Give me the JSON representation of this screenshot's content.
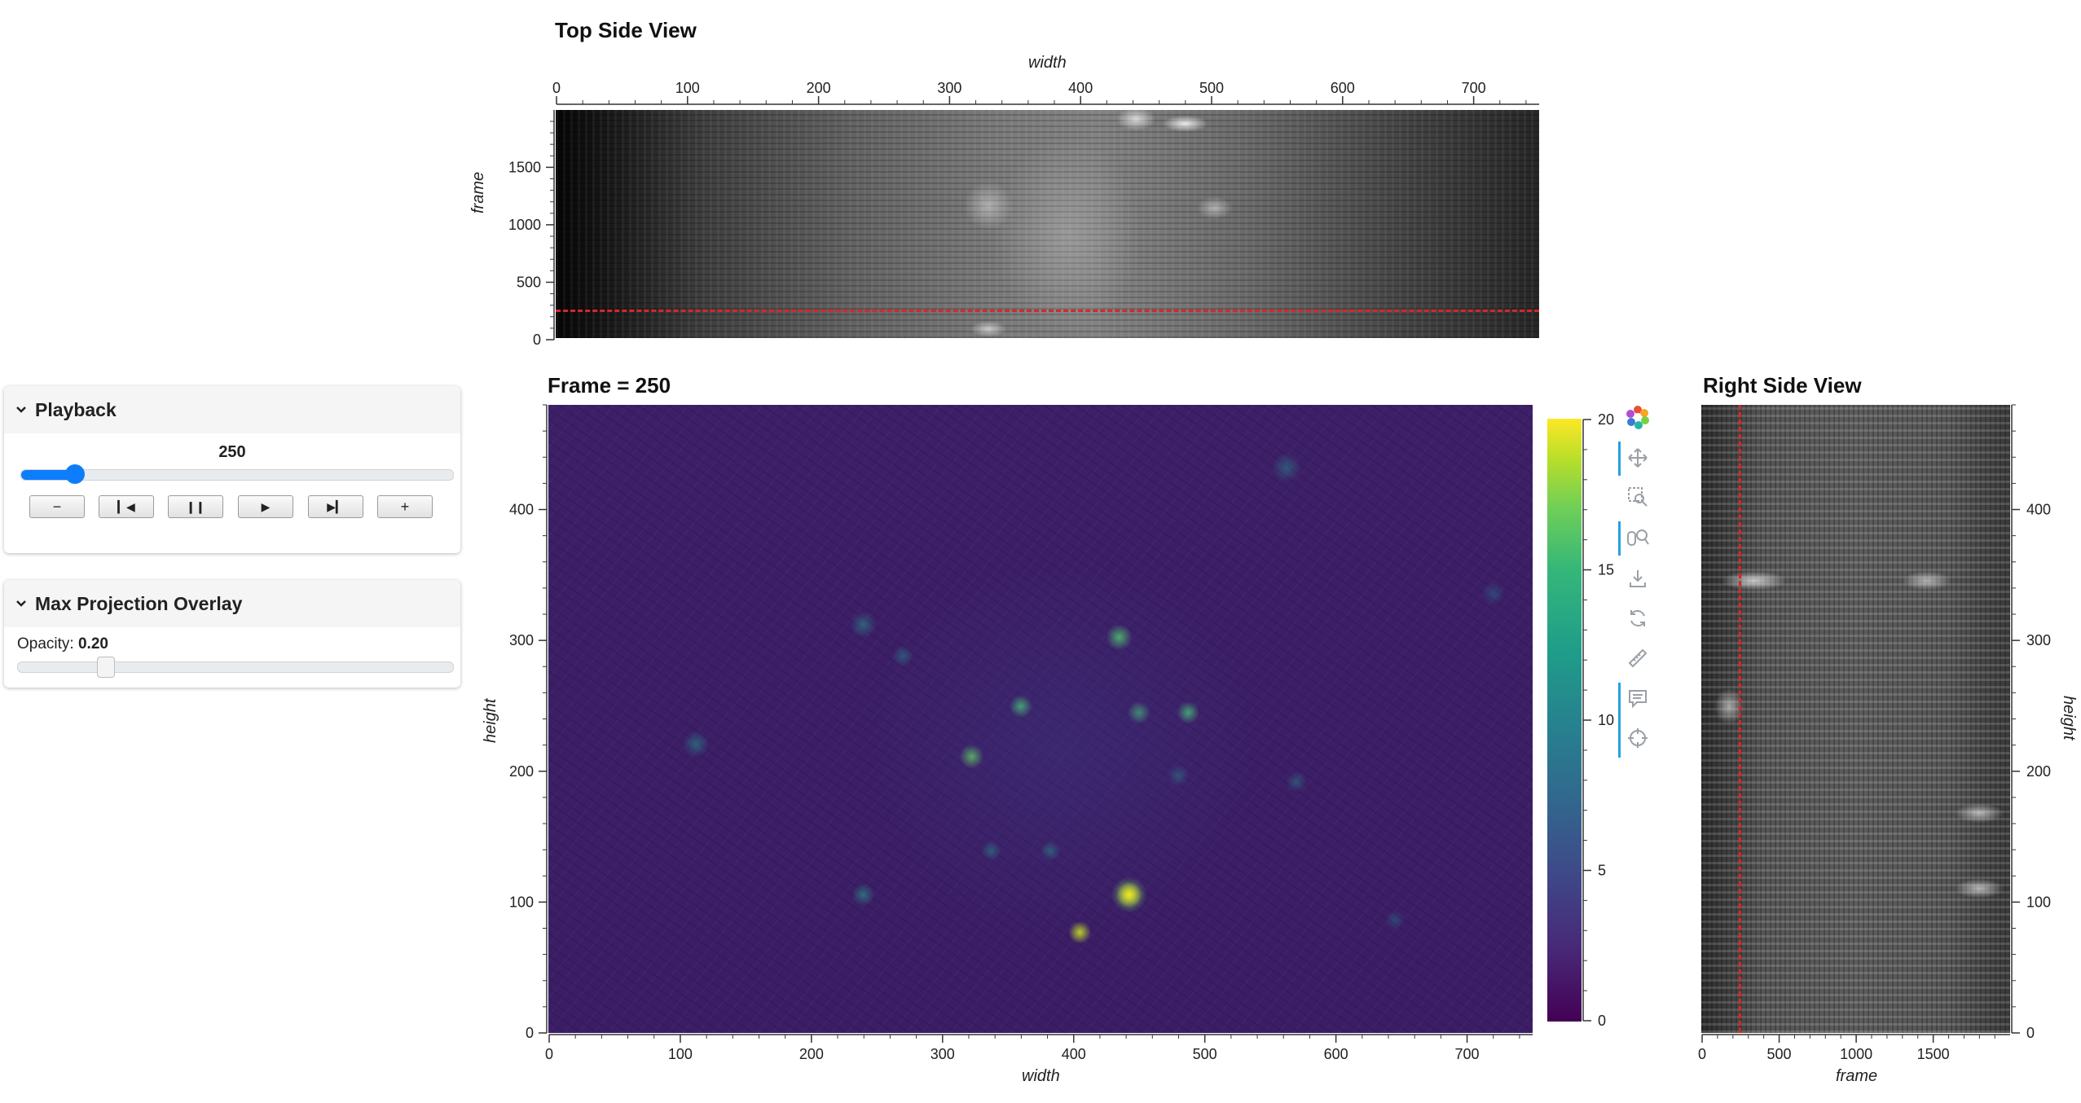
{
  "panels": {
    "playback": {
      "title": "Playback",
      "slider_value": "250",
      "frame_fraction": 0.125,
      "buttons": {
        "minus": "−",
        "first": "⏮",
        "pause": "⏸",
        "play": "▶",
        "last": "⏭",
        "plus": "+"
      }
    },
    "overlay": {
      "title": "Max Projection Overlay",
      "opacity_label": "Opacity:",
      "opacity_value": "0.20",
      "opacity_fraction": 0.2
    }
  },
  "toolbar": {
    "icons": [
      "bokeh-logo-icon",
      "pan-icon",
      "box-zoom-icon",
      "wheel-zoom-icon",
      "save-icon",
      "reset-icon",
      "ruler-icon",
      "hover-icon",
      "crosshair-icon"
    ]
  },
  "chart_data": [
    {
      "type": "heatmap",
      "title": "Top Side View",
      "xlabel": "width",
      "ylabel": "frame",
      "xlim": [
        0,
        750
      ],
      "ylim": [
        0,
        1999
      ],
      "xticks": [
        0,
        100,
        200,
        300,
        400,
        500,
        600,
        700
      ],
      "yticks": [
        0,
        500,
        1000,
        1500
      ],
      "colormap": "gray",
      "marker_line": {
        "axis": "y",
        "value": 250,
        "color": "#d62728",
        "style": "dashed"
      }
    },
    {
      "type": "heatmap",
      "title": "Frame = 250",
      "xlabel": "width",
      "ylabel": "height",
      "xlim": [
        0,
        750
      ],
      "ylim": [
        0,
        480
      ],
      "xticks": [
        0,
        100,
        200,
        300,
        400,
        500,
        600,
        700
      ],
      "yticks": [
        0,
        100,
        200,
        300,
        400
      ],
      "colormap": "viridis",
      "colorbar": {
        "min": 0,
        "max": 20,
        "ticks": [
          0,
          5,
          10,
          15,
          20
        ]
      }
    },
    {
      "type": "heatmap",
      "title": "Right Side View",
      "xlabel": "frame",
      "ylabel": "height",
      "xlim": [
        0,
        1999
      ],
      "ylim": [
        0,
        480
      ],
      "xticks": [
        0,
        500,
        1000,
        1500
      ],
      "yticks": [
        0,
        100,
        200,
        300,
        400
      ],
      "colormap": "gray",
      "marker_line": {
        "axis": "x",
        "value": 250,
        "color": "#d62728",
        "style": "dashed"
      }
    }
  ]
}
